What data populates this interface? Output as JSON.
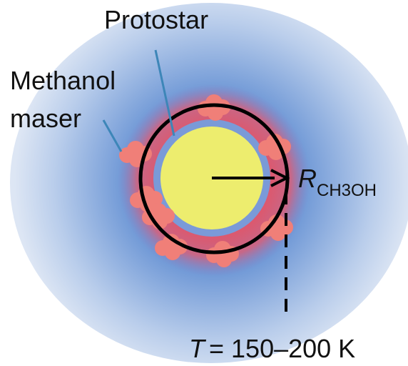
{
  "labels": {
    "protostar": "Protostar",
    "maser": [
      "Methanol",
      "maser"
    ],
    "radius": {
      "symbol": "R",
      "subscript": "CH3OH"
    },
    "temperature": {
      "symbol": "T",
      "value": "= 150–200 K"
    }
  }
}
